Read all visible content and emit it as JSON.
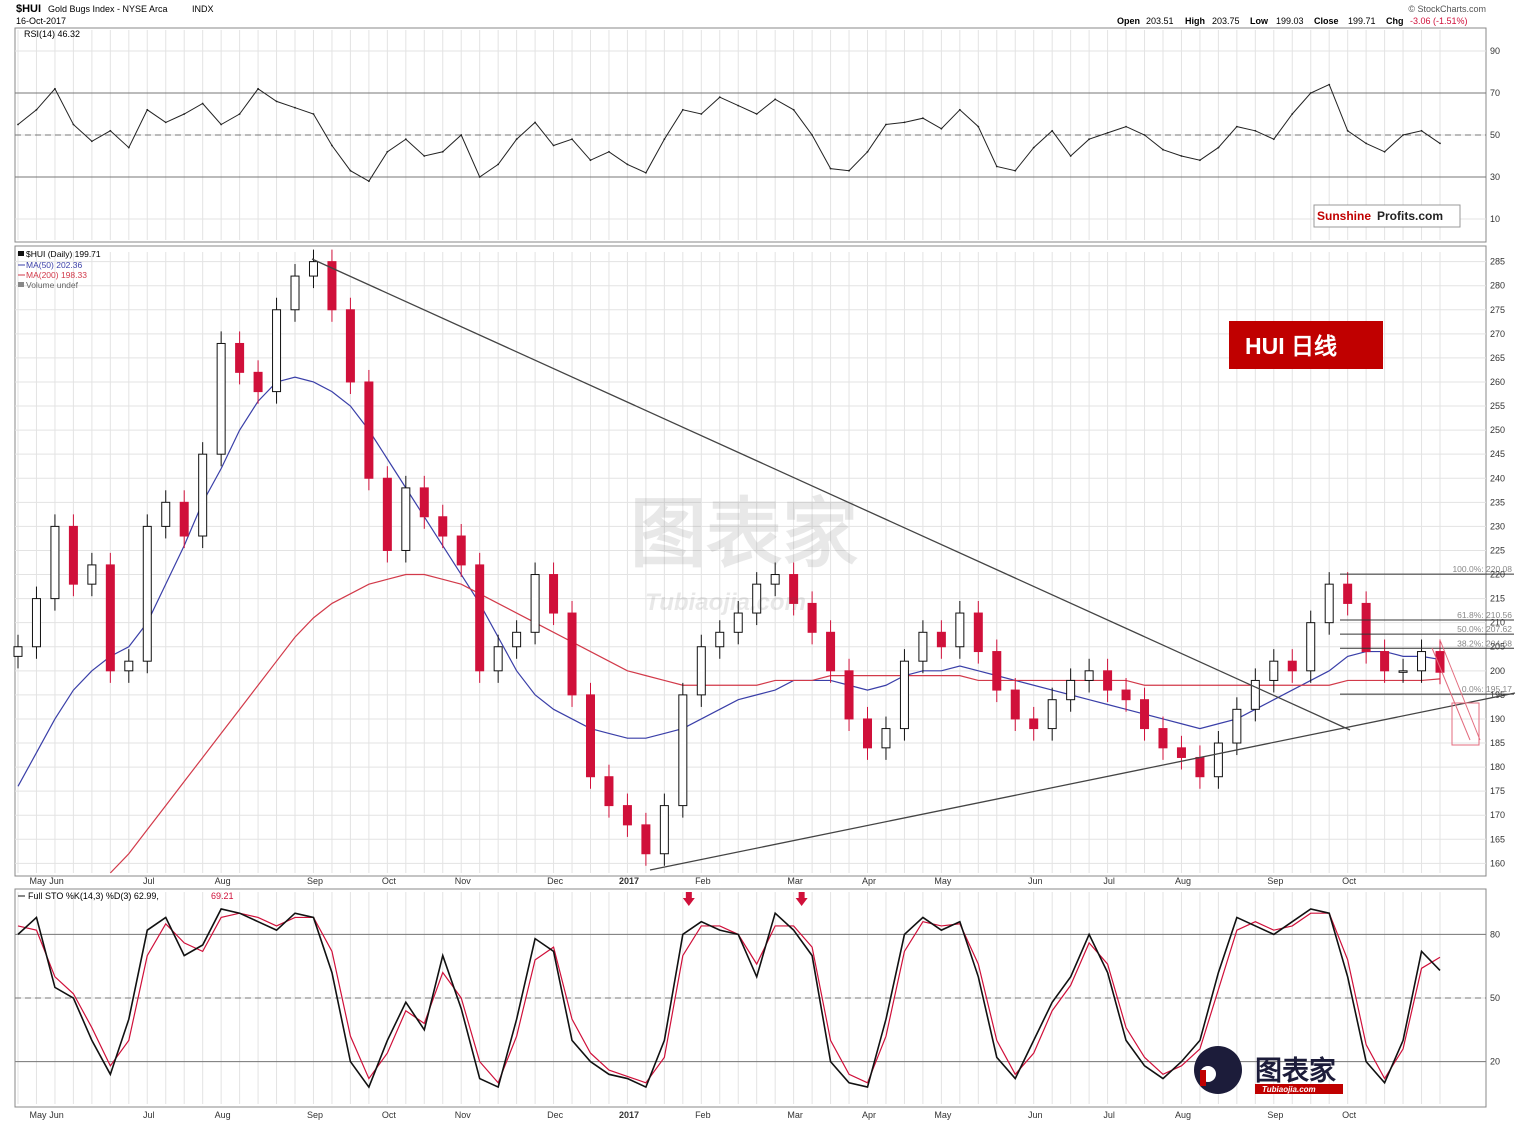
{
  "header": {
    "symbol": "$HUI",
    "name": "Gold Bugs Index - NYSE Arca",
    "exchange": "INDX",
    "date": "16-Oct-2017",
    "ohlc": {
      "open_label": "Open",
      "open": "203.51",
      "high_label": "High",
      "high": "203.75",
      "low_label": "Low",
      "low": "199.03",
      "close_label": "Close",
      "close": "199.71",
      "chg_label": "Chg",
      "chg": "-3.06 (-1.51%)"
    },
    "watermark": "© StockCharts.com"
  },
  "brand": {
    "sunshine": "Sunshine",
    "profits": "Profits.com"
  },
  "badge": {
    "text": "HUI 日线",
    "color": "#c00000"
  },
  "tubiaojia": {
    "cn": "图表家",
    "en": "Tubiaojia.com"
  },
  "colors": {
    "up": "#111111",
    "down": "#d0103a",
    "ma50": "#3a3fa8",
    "ma200": "#d23a4a",
    "grid": "#e3e3e3",
    "stoK": "#111111",
    "stoD": "#d0103a"
  },
  "chart_data": [
    {
      "type": "line",
      "panel": "RSI",
      "legend": "RSI(14) 46.32",
      "ylim": [
        0,
        100
      ],
      "yticks": [
        90,
        70,
        50,
        30,
        10
      ],
      "reference_lines": [
        70,
        50,
        30
      ],
      "x": [
        "2016-04-25",
        "2016-05-01",
        "2016-05-08",
        "2016-05-15",
        "2016-05-22",
        "2016-05-29",
        "2016-06-05",
        "2016-06-12",
        "2016-06-19",
        "2016-06-26",
        "2016-07-03",
        "2016-07-10",
        "2016-07-17",
        "2016-07-24",
        "2016-07-31",
        "2016-08-07",
        "2016-08-14",
        "2016-08-21",
        "2016-08-28",
        "2016-09-04",
        "2016-09-11",
        "2016-09-18",
        "2016-09-25",
        "2016-10-02",
        "2016-10-09",
        "2016-10-16",
        "2016-10-23",
        "2016-10-30",
        "2016-11-06",
        "2016-11-13",
        "2016-11-20",
        "2016-11-27",
        "2016-12-04",
        "2016-12-11",
        "2016-12-18",
        "2016-12-25",
        "2017-01-01",
        "2017-01-08",
        "2017-01-15",
        "2017-01-22",
        "2017-01-29",
        "2017-02-05",
        "2017-02-12",
        "2017-02-19",
        "2017-02-26",
        "2017-03-05",
        "2017-03-12",
        "2017-03-19",
        "2017-03-26",
        "2017-04-02",
        "2017-04-09",
        "2017-04-16",
        "2017-04-23",
        "2017-04-30",
        "2017-05-07",
        "2017-05-14",
        "2017-05-21",
        "2017-05-28",
        "2017-06-04",
        "2017-06-11",
        "2017-06-18",
        "2017-06-25",
        "2017-07-02",
        "2017-07-09",
        "2017-07-16",
        "2017-07-23",
        "2017-07-30",
        "2017-08-06",
        "2017-08-13",
        "2017-08-20",
        "2017-08-27",
        "2017-09-03",
        "2017-09-10",
        "2017-09-17",
        "2017-09-24",
        "2017-10-01",
        "2017-10-08",
        "2017-10-15"
      ],
      "values": [
        55,
        62,
        72,
        55,
        47,
        52,
        44,
        62,
        56,
        60,
        65,
        55,
        60,
        72,
        66,
        63,
        60,
        45,
        33,
        28,
        42,
        48,
        40,
        42,
        50,
        30,
        36,
        48,
        56,
        45,
        48,
        38,
        42,
        36,
        32,
        48,
        62,
        60,
        68,
        64,
        60,
        67,
        62,
        50,
        34,
        33,
        42,
        55,
        56,
        58,
        53,
        62,
        54,
        35,
        33,
        44,
        52,
        40,
        48,
        51,
        54,
        50,
        43,
        40,
        38,
        44,
        54,
        52,
        48,
        60,
        70,
        74,
        52,
        46,
        42,
        50,
        52,
        46
      ]
    },
    {
      "type": "candlestick",
      "panel": "Price",
      "legend": [
        "$HUI (Daily) 199.71",
        "MA(50) 202.36",
        "MA(200) 198.33",
        "Volume undef"
      ],
      "ylim": [
        158,
        287
      ],
      "yticks": [
        285,
        280,
        275,
        270,
        265,
        260,
        255,
        250,
        245,
        240,
        235,
        230,
        225,
        220,
        215,
        210,
        205,
        200,
        195,
        190,
        185,
        180,
        175,
        170,
        165,
        160
      ],
      "x_tick_labels": [
        "May",
        "Jun",
        "Jul",
        "Aug",
        "Sep",
        "Oct",
        "Nov",
        "Dec",
        "2017",
        "Feb",
        "Mar",
        "Apr",
        "May",
        "Jun",
        "Jul",
        "Aug",
        "Sep",
        "Oct"
      ],
      "x": [
        "2016-04-25",
        "2016-05-01",
        "2016-05-08",
        "2016-05-15",
        "2016-05-22",
        "2016-05-29",
        "2016-06-05",
        "2016-06-12",
        "2016-06-19",
        "2016-06-26",
        "2016-07-03",
        "2016-07-10",
        "2016-07-17",
        "2016-07-24",
        "2016-07-31",
        "2016-08-07",
        "2016-08-14",
        "2016-08-21",
        "2016-08-28",
        "2016-09-04",
        "2016-09-11",
        "2016-09-18",
        "2016-09-25",
        "2016-10-02",
        "2016-10-09",
        "2016-10-16",
        "2016-10-23",
        "2016-10-30",
        "2016-11-06",
        "2016-11-13",
        "2016-11-20",
        "2016-11-27",
        "2016-12-04",
        "2016-12-11",
        "2016-12-18",
        "2016-12-25",
        "2017-01-01",
        "2017-01-08",
        "2017-01-15",
        "2017-01-22",
        "2017-01-29",
        "2017-02-05",
        "2017-02-12",
        "2017-02-19",
        "2017-02-26",
        "2017-03-05",
        "2017-03-12",
        "2017-03-19",
        "2017-03-26",
        "2017-04-02",
        "2017-04-09",
        "2017-04-16",
        "2017-04-23",
        "2017-04-30",
        "2017-05-07",
        "2017-05-14",
        "2017-05-21",
        "2017-05-28",
        "2017-06-04",
        "2017-06-11",
        "2017-06-18",
        "2017-06-25",
        "2017-07-02",
        "2017-07-09",
        "2017-07-16",
        "2017-07-23",
        "2017-07-30",
        "2017-08-06",
        "2017-08-13",
        "2017-08-20",
        "2017-08-27",
        "2017-09-03",
        "2017-09-10",
        "2017-09-17",
        "2017-09-24",
        "2017-10-01",
        "2017-10-08",
        "2017-10-15"
      ],
      "close": [
        205,
        215,
        230,
        218,
        222,
        200,
        202,
        230,
        235,
        228,
        245,
        268,
        262,
        258,
        275,
        282,
        285,
        275,
        260,
        240,
        225,
        238,
        232,
        228,
        222,
        200,
        205,
        208,
        220,
        212,
        195,
        178,
        172,
        168,
        162,
        172,
        195,
        205,
        208,
        212,
        218,
        220,
        214,
        208,
        200,
        190,
        184,
        188,
        202,
        208,
        205,
        212,
        204,
        196,
        190,
        188,
        194,
        198,
        200,
        196,
        194,
        188,
        184,
        182,
        178,
        185,
        192,
        198,
        202,
        200,
        210,
        218,
        214,
        204,
        200,
        200,
        204,
        199.71
      ],
      "ma50": [
        176,
        183,
        190,
        196,
        200,
        203,
        205,
        210,
        218,
        226,
        235,
        242,
        250,
        256,
        260,
        261,
        260,
        258,
        255,
        250,
        244,
        238,
        232,
        226,
        220,
        214,
        207,
        200,
        195,
        192,
        190,
        188,
        187,
        186,
        186,
        187,
        188,
        190,
        192,
        194,
        195,
        196,
        198,
        198,
        198,
        197,
        196,
        197,
        199,
        200,
        200,
        201,
        200,
        199,
        198,
        197,
        196,
        195,
        194,
        193,
        192,
        191,
        190,
        189,
        188,
        189,
        190,
        192,
        194,
        196,
        198,
        200,
        203,
        204,
        204,
        203,
        203,
        202.36
      ],
      "ma200": [
        150,
        151,
        152,
        153,
        155,
        158,
        162,
        167,
        172,
        177,
        182,
        187,
        192,
        197,
        202,
        207,
        211,
        214,
        216,
        218,
        219,
        220,
        220,
        219,
        218,
        216,
        214,
        212,
        210,
        208,
        206,
        204,
        202,
        200,
        199,
        198,
        197,
        197,
        197,
        197,
        197,
        198,
        198,
        198,
        199,
        199,
        199,
        199,
        199,
        199,
        199,
        199,
        198,
        198,
        198,
        198,
        198,
        198,
        198,
        198,
        198,
        197,
        197,
        197,
        197,
        197,
        197,
        197,
        197,
        197,
        197,
        197,
        198,
        198,
        198,
        198,
        198,
        198.33
      ],
      "fibonacci": [
        {
          "label": "100.0%: 220.08",
          "value": 220.08
        },
        {
          "label": "61.8%: 210.56",
          "value": 210.56
        },
        {
          "label": "50.0%: 207.62",
          "value": 207.62
        },
        {
          "label": "38.2%: 204.68",
          "value": 204.68
        },
        {
          "label": "0.0%: 195.17",
          "value": 195.17
        }
      ]
    },
    {
      "type": "line",
      "panel": "Full STO",
      "legend_k": "Full STO %K(14,3) %D(3) 62.99,",
      "legend_d": "69.21",
      "ylim": [
        0,
        100
      ],
      "yticks": [
        80,
        50,
        20
      ],
      "reference_lines": [
        80,
        50,
        20
      ],
      "x": [
        "2016-04-25",
        "2016-05-01",
        "2016-05-08",
        "2016-05-15",
        "2016-05-22",
        "2016-05-29",
        "2016-06-05",
        "2016-06-12",
        "2016-06-19",
        "2016-06-26",
        "2016-07-03",
        "2016-07-10",
        "2016-07-17",
        "2016-07-24",
        "2016-07-31",
        "2016-08-07",
        "2016-08-14",
        "2016-08-21",
        "2016-08-28",
        "2016-09-04",
        "2016-09-11",
        "2016-09-18",
        "2016-09-25",
        "2016-10-02",
        "2016-10-09",
        "2016-10-16",
        "2016-10-23",
        "2016-10-30",
        "2016-11-06",
        "2016-11-13",
        "2016-11-20",
        "2016-11-27",
        "2016-12-04",
        "2016-12-11",
        "2016-12-18",
        "2016-12-25",
        "2017-01-01",
        "2017-01-08",
        "2017-01-15",
        "2017-01-22",
        "2017-01-29",
        "2017-02-05",
        "2017-02-12",
        "2017-02-19",
        "2017-02-26",
        "2017-03-05",
        "2017-03-12",
        "2017-03-19",
        "2017-03-26",
        "2017-04-02",
        "2017-04-09",
        "2017-04-16",
        "2017-04-23",
        "2017-04-30",
        "2017-05-07",
        "2017-05-14",
        "2017-05-21",
        "2017-05-28",
        "2017-06-04",
        "2017-06-11",
        "2017-06-18",
        "2017-06-25",
        "2017-07-02",
        "2017-07-09",
        "2017-07-16",
        "2017-07-23",
        "2017-07-30",
        "2017-08-06",
        "2017-08-13",
        "2017-08-20",
        "2017-08-27",
        "2017-09-03",
        "2017-09-10",
        "2017-09-17",
        "2017-09-24",
        "2017-10-01",
        "2017-10-08",
        "2017-10-15"
      ],
      "k": [
        80,
        88,
        55,
        50,
        30,
        14,
        40,
        82,
        88,
        70,
        75,
        92,
        90,
        86,
        82,
        90,
        88,
        62,
        20,
        8,
        30,
        48,
        35,
        70,
        45,
        12,
        8,
        40,
        78,
        72,
        30,
        20,
        14,
        12,
        8,
        30,
        80,
        86,
        82,
        80,
        60,
        90,
        82,
        70,
        20,
        10,
        8,
        40,
        80,
        88,
        82,
        86,
        60,
        22,
        12,
        30,
        48,
        60,
        80,
        62,
        30,
        18,
        12,
        20,
        30,
        62,
        88,
        84,
        80,
        86,
        92,
        90,
        60,
        20,
        10,
        30,
        72,
        62.99
      ],
      "d": [
        84,
        82,
        60,
        52,
        36,
        18,
        30,
        70,
        85,
        76,
        72,
        88,
        90,
        88,
        84,
        88,
        88,
        72,
        32,
        12,
        24,
        44,
        38,
        62,
        50,
        20,
        10,
        32,
        68,
        74,
        40,
        24,
        16,
        13,
        10,
        22,
        70,
        84,
        84,
        80,
        66,
        84,
        84,
        74,
        30,
        14,
        10,
        32,
        72,
        86,
        84,
        85,
        66,
        30,
        14,
        24,
        44,
        56,
        76,
        66,
        36,
        22,
        14,
        18,
        26,
        54,
        82,
        86,
        82,
        84,
        90,
        90,
        68,
        28,
        12,
        26,
        64,
        69.21
      ],
      "markers": [
        "2017-01-03",
        "2017-02-10"
      ]
    }
  ]
}
